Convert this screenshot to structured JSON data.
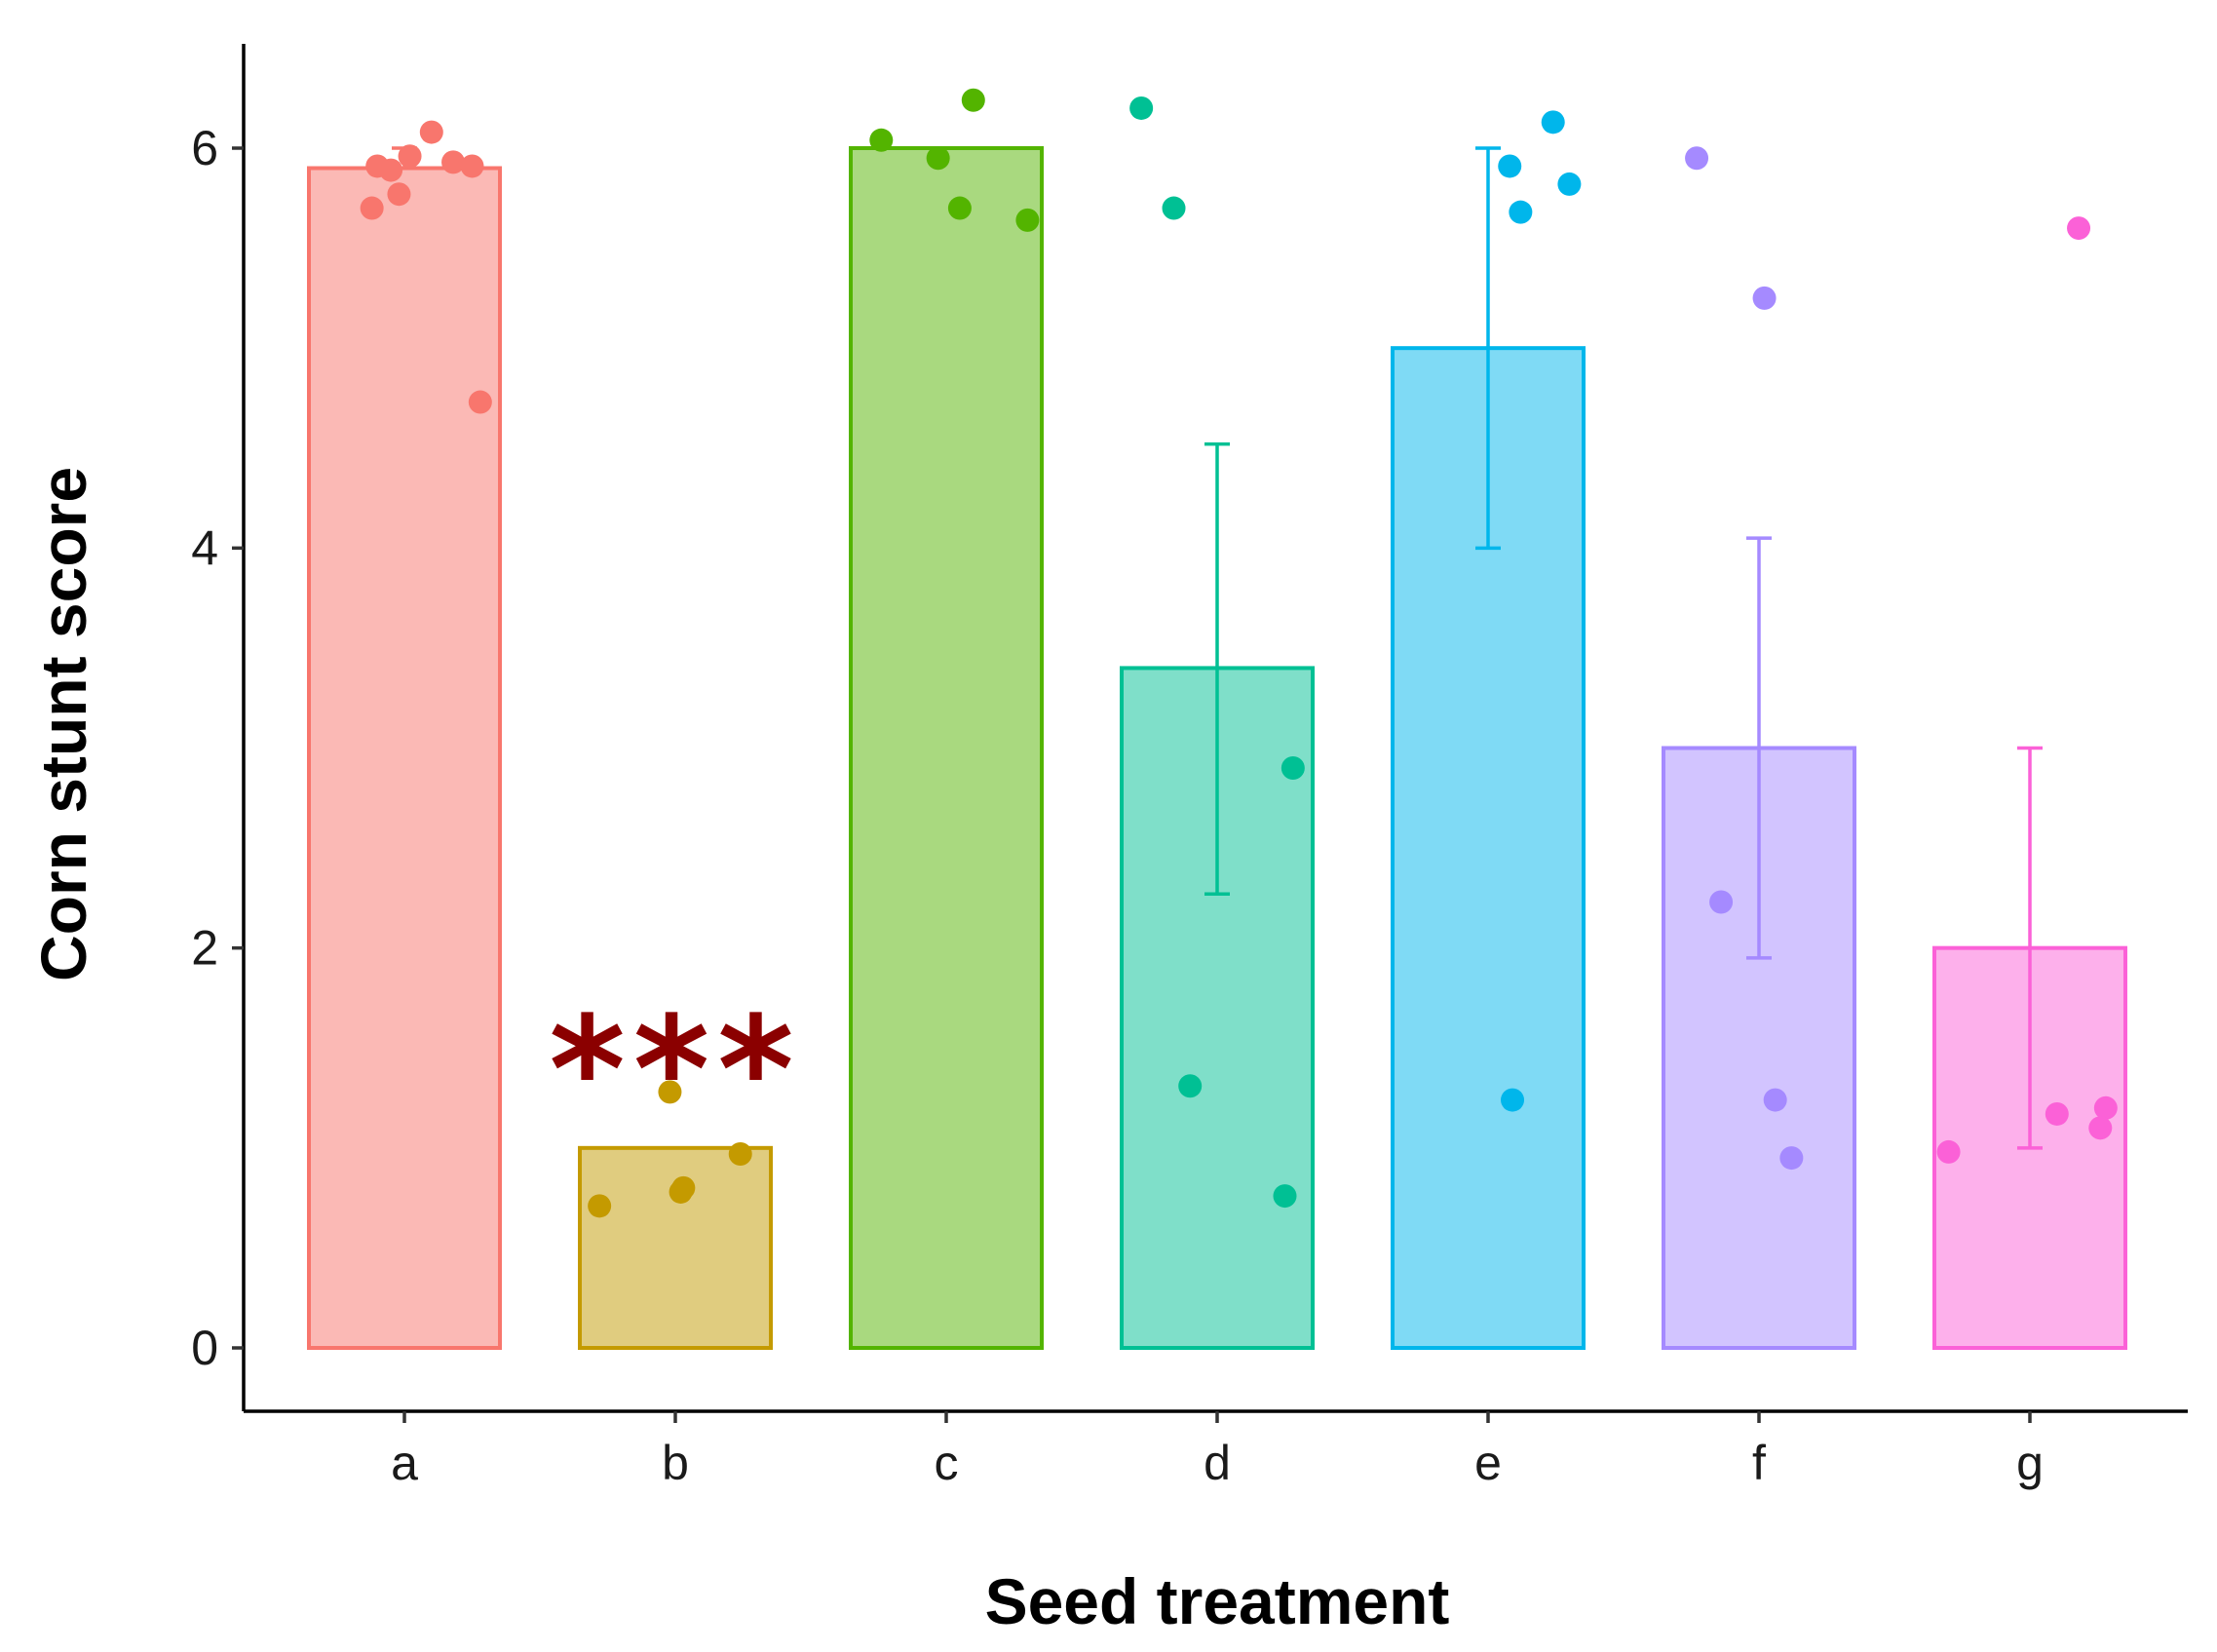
{
  "chart_data": {
    "type": "bar",
    "title": "",
    "xlabel": "Seed treatment",
    "ylabel": "Corn stunt score",
    "ylim": [
      -0.3,
      6.5
    ],
    "yticks": [
      "0",
      "2",
      "4",
      "6"
    ],
    "ytick_values": [
      0,
      2,
      4,
      6
    ],
    "categories": [
      "a",
      "b",
      "c",
      "d",
      "e",
      "f",
      "g"
    ],
    "values": [
      5.9,
      1.0,
      6.0,
      3.4,
      5.0,
      3.0,
      2.0
    ],
    "error_low": [
      5.9,
      1.0,
      6.0,
      2.27,
      4.0,
      1.95,
      1.0
    ],
    "error_high": [
      6.0,
      1.0,
      6.0,
      4.52,
      6.0,
      4.05,
      3.0
    ],
    "colors": {
      "stroke": [
        "#F8766D",
        "#C49A00",
        "#53B400",
        "#00C094",
        "#00B6EB",
        "#A58AFF",
        "#FB61D7"
      ],
      "fill": [
        "#FBB9B5",
        "#E0CC7F",
        "#A9D97F",
        "#7FDFC9",
        "#7FDAF5",
        "#D2C4FF",
        "#FDB0EB"
      ]
    },
    "points": [
      [
        [
          6.08,
          0.1
        ],
        [
          5.91,
          -0.1
        ],
        [
          5.96,
          0.02
        ],
        [
          5.93,
          0.18
        ],
        [
          5.91,
          0.25
        ],
        [
          5.7,
          -0.12
        ],
        [
          5.77,
          -0.02
        ],
        [
          5.89,
          -0.05
        ],
        [
          4.73,
          0.28
        ]
      ],
      [
        [
          1.28,
          -0.02
        ],
        [
          0.97,
          0.24
        ],
        [
          0.8,
          0.03
        ],
        [
          0.78,
          0.02
        ],
        [
          0.71,
          -0.28
        ]
      ],
      [
        [
          6.24,
          0.1
        ],
        [
          6.04,
          -0.24
        ],
        [
          5.95,
          -0.03
        ],
        [
          5.7,
          0.05
        ],
        [
          5.64,
          0.3
        ]
      ],
      [
        [
          6.2,
          -0.28
        ],
        [
          5.7,
          -0.16
        ],
        [
          2.9,
          0.28
        ],
        [
          1.31,
          -0.1
        ],
        [
          0.76,
          0.25
        ]
      ],
      [
        [
          6.13,
          0.24
        ],
        [
          5.91,
          0.08
        ],
        [
          5.82,
          0.3
        ],
        [
          5.68,
          0.12
        ],
        [
          1.24,
          0.09
        ]
      ],
      [
        [
          5.95,
          -0.23
        ],
        [
          5.25,
          0.02
        ],
        [
          2.23,
          -0.14
        ],
        [
          1.24,
          0.06
        ],
        [
          0.95,
          0.12
        ]
      ],
      [
        [
          5.6,
          0.18
        ],
        [
          1.2,
          0.28
        ],
        [
          1.17,
          0.1
        ],
        [
          1.1,
          0.26
        ],
        [
          0.98,
          -0.3
        ]
      ]
    ],
    "annotations": [
      {
        "text": "***",
        "category": "b",
        "y": 1.6
      }
    ]
  }
}
